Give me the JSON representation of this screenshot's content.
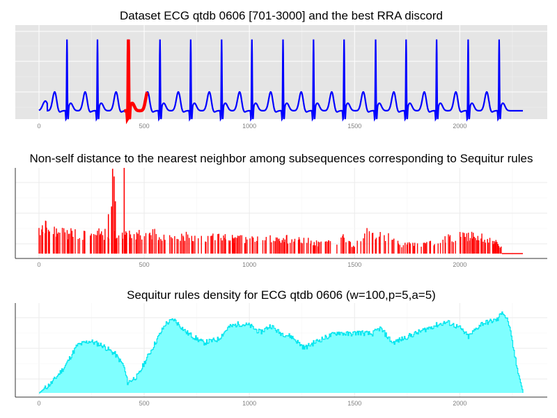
{
  "chart_data": [
    {
      "type": "line",
      "title": "Dataset ECG qtdb 0606 [701-3000] and the best RRA discord",
      "xlabel": "",
      "ylabel": "",
      "xlim": [
        0,
        2300
      ],
      "xticks": [
        0,
        500,
        1000,
        1500,
        2000
      ],
      "background": "gray",
      "grid": true,
      "series": [
        {
          "role": "signal",
          "color": "#0000ff",
          "kind": "ecg",
          "beat_r_peaks": [
            133,
            278,
            425,
            575,
            721,
            868,
            1012,
            1160,
            1305,
            1450,
            1600,
            1745,
            1890,
            2040,
            2187
          ],
          "baseline": -1.0,
          "t_wave_height": 0.5,
          "r_peak": 2.15,
          "s_trough": -1.5
        },
        {
          "role": "discord",
          "color": "#ff0000",
          "x_range": [
            405,
            515
          ]
        }
      ]
    },
    {
      "type": "bar",
      "title": "Non-self distance to the nearest neighbor among subsequences corresponding to Sequitur rules",
      "xlabel": "",
      "ylabel": "",
      "xlim": [
        0,
        2300
      ],
      "xticks": [
        0,
        500,
        1000,
        1500,
        2000
      ],
      "ylim": [
        0,
        1.0
      ],
      "background": "white",
      "grid": true,
      "color": "#ff0000",
      "highlight_spikes": [
        {
          "x": 330,
          "y": 0.46
        },
        {
          "x": 345,
          "y": 0.55
        },
        {
          "x": 350,
          "y": 0.99
        },
        {
          "x": 357,
          "y": 0.9
        },
        {
          "x": 363,
          "y": 0.61
        },
        {
          "x": 405,
          "y": 1.0
        },
        {
          "x": 410,
          "y": 0.22
        }
      ],
      "level_envelope": [
        [
          0,
          0.36
        ],
        [
          20,
          0.38
        ],
        [
          120,
          0.3
        ],
        [
          300,
          0.28
        ],
        [
          400,
          0.25
        ],
        [
          500,
          0.28
        ],
        [
          600,
          0.27
        ],
        [
          800,
          0.23
        ],
        [
          1000,
          0.2
        ],
        [
          1150,
          0.21
        ],
        [
          1250,
          0.21
        ],
        [
          1330,
          0.14
        ],
        [
          1380,
          0.15
        ],
        [
          1450,
          0.22
        ],
        [
          1500,
          0.1
        ],
        [
          1550,
          0.29
        ],
        [
          1650,
          0.25
        ],
        [
          1720,
          0.12
        ],
        [
          1900,
          0.16
        ],
        [
          2000,
          0.28
        ],
        [
          2150,
          0.2
        ],
        [
          2200,
          0.1
        ]
      ],
      "active_range": [
        0,
        2200
      ],
      "tail_range": [
        2200,
        2300
      ],
      "tail_value": 0.0
    },
    {
      "type": "area",
      "title": "Sequitur rules density for ECG qtdb 0606 (w=100,p=5,a=5)",
      "xlabel": "",
      "ylabel": "",
      "xlim": [
        0,
        2300
      ],
      "xticks": [
        0,
        500,
        1000,
        1500,
        2000
      ],
      "ylim": [
        0,
        1.0
      ],
      "background": "white",
      "grid": true,
      "fill_color": "#7fffff",
      "line_color": "#00e5ee",
      "profile": [
        [
          0,
          0.0
        ],
        [
          20,
          0.04
        ],
        [
          60,
          0.12
        ],
        [
          120,
          0.3
        ],
        [
          180,
          0.55
        ],
        [
          240,
          0.6
        ],
        [
          300,
          0.55
        ],
        [
          360,
          0.45
        ],
        [
          400,
          0.32
        ],
        [
          420,
          0.12
        ],
        [
          470,
          0.2
        ],
        [
          500,
          0.35
        ],
        [
          560,
          0.62
        ],
        [
          600,
          0.8
        ],
        [
          640,
          0.85
        ],
        [
          700,
          0.7
        ],
        [
          780,
          0.58
        ],
        [
          850,
          0.62
        ],
        [
          900,
          0.76
        ],
        [
          950,
          0.8
        ],
        [
          1000,
          0.78
        ],
        [
          1050,
          0.7
        ],
        [
          1100,
          0.78
        ],
        [
          1140,
          0.7
        ],
        [
          1200,
          0.65
        ],
        [
          1260,
          0.52
        ],
        [
          1320,
          0.6
        ],
        [
          1370,
          0.65
        ],
        [
          1420,
          0.7
        ],
        [
          1470,
          0.68
        ],
        [
          1520,
          0.7
        ],
        [
          1580,
          0.68
        ],
        [
          1620,
          0.75
        ],
        [
          1680,
          0.58
        ],
        [
          1720,
          0.62
        ],
        [
          1780,
          0.68
        ],
        [
          1830,
          0.73
        ],
        [
          1880,
          0.78
        ],
        [
          1940,
          0.82
        ],
        [
          2000,
          0.75
        ],
        [
          2040,
          0.65
        ],
        [
          2100,
          0.8
        ],
        [
          2180,
          0.85
        ],
        [
          2200,
          0.95
        ],
        [
          2230,
          0.82
        ],
        [
          2270,
          0.3
        ],
        [
          2300,
          0.0
        ]
      ]
    }
  ]
}
